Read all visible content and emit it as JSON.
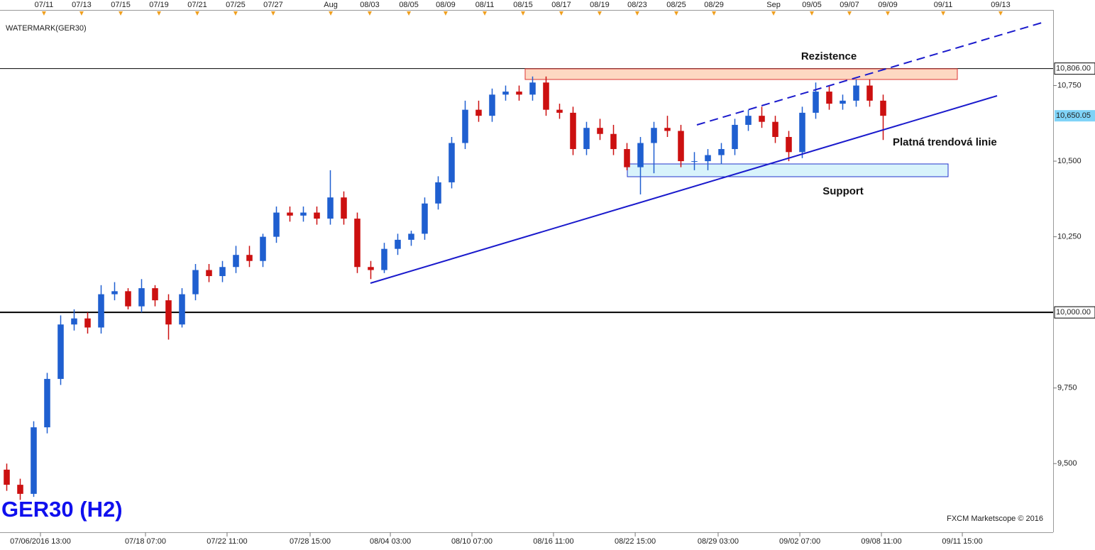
{
  "chart_data": {
    "type": "candlestick",
    "title": "GER30 (H2)",
    "watermark": "WATERMARK(GER30)",
    "credit": "FXCM Marketscope © 2016",
    "annotations": [
      "Rezistence",
      "Support",
      "Platná trendová linie"
    ],
    "up_color": "#1f5fd0",
    "down_color": "#cc1010",
    "open": [
      9480,
      9430,
      9400,
      9620,
      9780,
      9960,
      9980,
      9950,
      10060,
      10070,
      10020,
      10080,
      10040,
      9960,
      10060,
      10140,
      10120,
      10150,
      10190,
      10170,
      10250,
      10330,
      10320,
      10330,
      10310,
      10380,
      10310,
      10150,
      10140,
      10210,
      10240,
      10260,
      10360,
      10430,
      10560,
      10670,
      10650,
      10720,
      10730,
      10720,
      10760,
      10670,
      10660,
      10540,
      10610,
      10590,
      10540,
      10480,
      10560,
      10610,
      10600,
      10500,
      10500,
      10520,
      10540,
      10620,
      10650,
      10630,
      10580,
      10530,
      10660,
      10730,
      10690,
      10700,
      10750,
      10700
    ],
    "high": [
      9500,
      9450,
      9640,
      9800,
      9990,
      10010,
      10000,
      10090,
      10100,
      10080,
      10110,
      10090,
      10060,
      10080,
      10160,
      10160,
      10170,
      10220,
      10220,
      10260,
      10350,
      10350,
      10350,
      10350,
      10470,
      10400,
      10330,
      10170,
      10230,
      10260,
      10270,
      10380,
      10450,
      10580,
      10700,
      10700,
      10740,
      10750,
      10750,
      10780,
      10780,
      10690,
      10680,
      10630,
      10640,
      10620,
      10560,
      10580,
      10630,
      10650,
      10620,
      10530,
      10540,
      10560,
      10640,
      10670,
      10680,
      10650,
      10600,
      10680,
      10760,
      10750,
      10720,
      10770,
      10770,
      10720
    ],
    "low": [
      9410,
      9380,
      9390,
      9600,
      9760,
      9940,
      9930,
      9930,
      10040,
      10010,
      10000,
      10020,
      9910,
      9950,
      10040,
      10100,
      10100,
      10130,
      10150,
      10150,
      10230,
      10300,
      10300,
      10290,
      10290,
      10290,
      10130,
      10110,
      10130,
      10190,
      10220,
      10240,
      10340,
      10410,
      10540,
      10630,
      10630,
      10700,
      10700,
      10700,
      10650,
      10640,
      10520,
      10520,
      10570,
      10520,
      10470,
      10390,
      10460,
      10580,
      10480,
      10470,
      10470,
      10490,
      10520,
      10600,
      10610,
      10560,
      10500,
      10510,
      10640,
      10670,
      10670,
      10680,
      10680,
      10570
    ],
    "close": [
      9430,
      9400,
      9620,
      9780,
      9960,
      9980,
      9950,
      10060,
      10070,
      10020,
      10080,
      10040,
      9960,
      10060,
      10140,
      10120,
      10150,
      10190,
      10170,
      10250,
      10330,
      10320,
      10330,
      10310,
      10380,
      10310,
      10150,
      10140,
      10210,
      10240,
      10260,
      10360,
      10430,
      10560,
      10670,
      10650,
      10720,
      10730,
      10720,
      10760,
      10670,
      10660,
      10540,
      10610,
      10590,
      10540,
      10480,
      10560,
      10610,
      10600,
      10500,
      10500,
      10520,
      10540,
      10620,
      10650,
      10630,
      10580,
      10530,
      10660,
      10730,
      10690,
      10700,
      10750,
      10700,
      10650
    ],
    "xlim": [
      0,
      78
    ],
    "ylim": [
      9273,
      11000
    ],
    "yticks": [
      {
        "value": 9500,
        "label": "9,500"
      },
      {
        "value": 9750,
        "label": "9,750"
      },
      {
        "value": 10250,
        "label": "10,250"
      },
      {
        "value": 10500,
        "label": "10,500"
      },
      {
        "value": 10750,
        "label": "10,750"
      }
    ],
    "levels": [
      {
        "value": 10806,
        "label": "10,806.00"
      },
      {
        "value": 10650.05,
        "label": "10,650.05"
      },
      {
        "value": 10000,
        "label": "10,000.00"
      }
    ],
    "xticks_top": [
      {
        "value": 3.26,
        "label": "07/11"
      },
      {
        "value": 6.05,
        "label": "07/13"
      },
      {
        "value": 8.95,
        "label": "07/15"
      },
      {
        "value": 11.79,
        "label": "07/19"
      },
      {
        "value": 14.63,
        "label": "07/21"
      },
      {
        "value": 17.47,
        "label": "07/25"
      },
      {
        "value": 20.26,
        "label": "07/27"
      },
      {
        "value": 24.53,
        "label": "Aug"
      },
      {
        "value": 27.42,
        "label": "08/03"
      },
      {
        "value": 30.32,
        "label": "08/05"
      },
      {
        "value": 33.05,
        "label": "08/09"
      },
      {
        "value": 35.95,
        "label": "08/11"
      },
      {
        "value": 38.79,
        "label": "08/15"
      },
      {
        "value": 41.63,
        "label": "08/17"
      },
      {
        "value": 44.47,
        "label": "08/19"
      },
      {
        "value": 47.26,
        "label": "08/23"
      },
      {
        "value": 50.16,
        "label": "08/25"
      },
      {
        "value": 52.95,
        "label": "08/29"
      },
      {
        "value": 57.37,
        "label": "Sep"
      },
      {
        "value": 60.21,
        "label": "09/05"
      },
      {
        "value": 63.0,
        "label": "09/07"
      },
      {
        "value": 65.84,
        "label": "09/09"
      },
      {
        "value": 69.95,
        "label": "09/11"
      },
      {
        "value": 74.21,
        "label": "09/13"
      }
    ],
    "xticks": [
      {
        "value": 3,
        "label": "07/06/2016 13:00"
      },
      {
        "value": 10.79,
        "label": "07/18 07:00"
      },
      {
        "value": 16.84,
        "label": "07/22 11:00"
      },
      {
        "value": 23,
        "label": "07/28 15:00"
      },
      {
        "value": 28.95,
        "label": "08/04 03:00"
      },
      {
        "value": 35,
        "label": "08/10 07:00"
      },
      {
        "value": 41.05,
        "label": "08/16 11:00"
      },
      {
        "value": 47.11,
        "label": "08/22 15:00"
      },
      {
        "value": 53.26,
        "label": "08/29 03:00"
      },
      {
        "value": 59.32,
        "label": "09/02 07:00"
      },
      {
        "value": 65.37,
        "label": "09/08 11:00"
      },
      {
        "value": 71.37,
        "label": "09/11 15:00"
      }
    ]
  }
}
